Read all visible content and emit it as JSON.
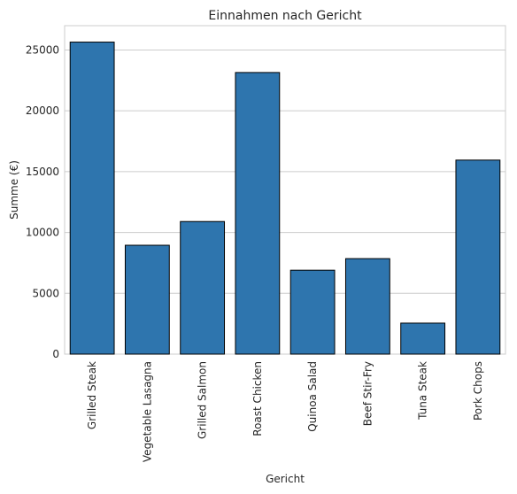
{
  "chart_data": {
    "type": "bar",
    "title": "Einnahmen nach Gericht",
    "xlabel": "Gericht",
    "ylabel": "Summe (€)",
    "categories": [
      "Grilled Steak",
      "Vegetable Lasagna",
      "Grilled Salmon",
      "Roast Chicken",
      "Quinoa Salad",
      "Beef Stir-Fry",
      "Tuna Steak",
      "Pork Chops"
    ],
    "values": [
      25650,
      8950,
      10900,
      23150,
      6900,
      7850,
      2550,
      15950
    ],
    "yticks": [
      0,
      5000,
      10000,
      15000,
      20000,
      25000
    ],
    "ylim": [
      0,
      27000
    ],
    "grid": "horizontal",
    "legend": "none",
    "colors": {
      "bar": "#2e75ae",
      "edge": "#000000",
      "grid": "#cccccc",
      "spine": "#cccccc"
    }
  }
}
